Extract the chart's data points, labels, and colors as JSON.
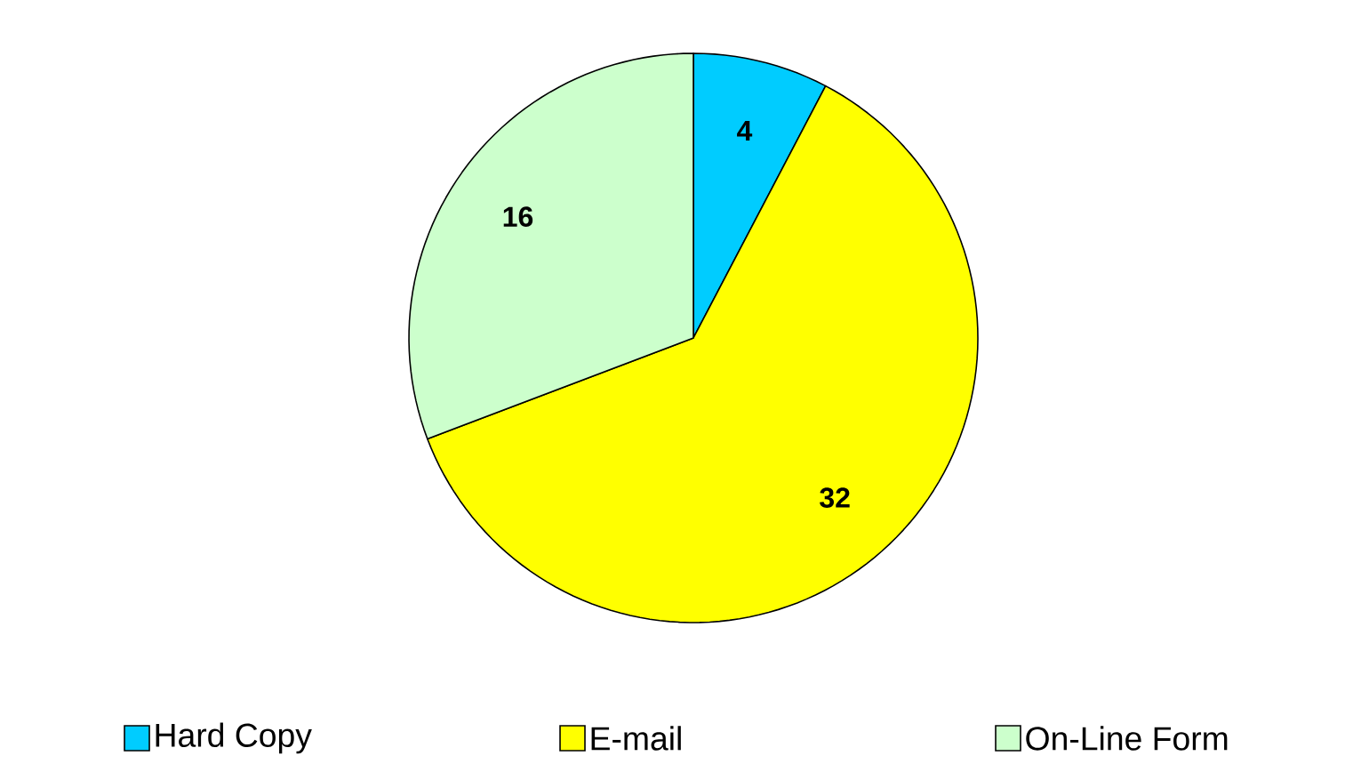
{
  "chart_data": {
    "type": "pie",
    "categories": [
      "Hard Copy",
      "E-mail",
      "On-Line Form"
    ],
    "values": [
      4,
      32,
      16
    ],
    "colors": [
      "#00ccff",
      "#ffff00",
      "#ccffcc"
    ],
    "data_labels": true,
    "legend": "bottom"
  }
}
